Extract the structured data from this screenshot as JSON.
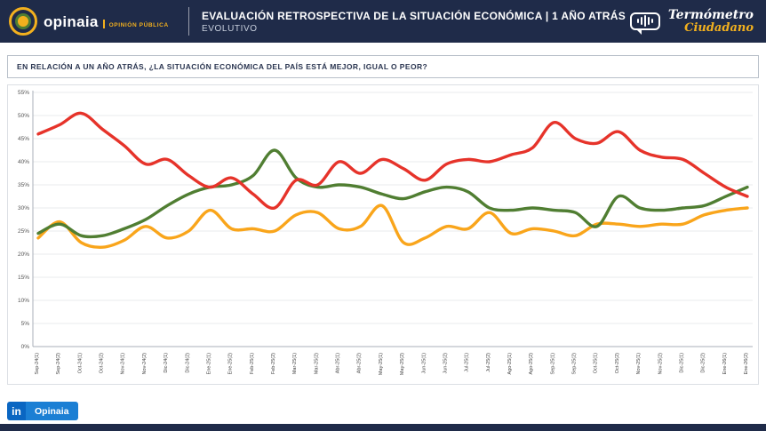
{
  "header": {
    "brand": {
      "name": "opinaia",
      "tagline": "OPINIÓN PÚBLICA"
    },
    "title": "EVALUACIÓN RETROSPECTIVA DE LA SITUACIÓN ECONÓMICA | 1 AÑO ATRÁS",
    "subtitle": "EVOLUTIVO",
    "right_logo": {
      "line1": "Termómetro",
      "line2": "Ciudadano"
    }
  },
  "question": "EN RELACIÓN A UN AÑO ATRÁS, ¿LA SITUACIÓN ECONÓMICA DEL PAÍS ESTÁ MEJOR, IGUAL O PEOR?",
  "chart_data": {
    "type": "line",
    "title": "",
    "xlabel": "",
    "ylabel": "",
    "ylim": [
      0,
      55
    ],
    "yticks": [
      0,
      5,
      10,
      15,
      20,
      25,
      30,
      35,
      40,
      45,
      50,
      55
    ],
    "ytick_format": "percent",
    "grid": true,
    "legend": "none",
    "categories": [
      "Sep-24(1)",
      "Sep-24(2)",
      "Oct-24(1)",
      "Oct-24(2)",
      "Nov-24(1)",
      "Nov-24(2)",
      "Dic-24(1)",
      "Dic-24(2)",
      "Ene-25(1)",
      "Ene-25(2)",
      "Feb-25(1)",
      "Feb-25(2)",
      "Mar-25(1)",
      "Mar-25(2)",
      "Abr-25(1)",
      "Abr-25(2)",
      "May-25(1)",
      "May-25(2)",
      "Jun-25(1)",
      "Jun-25(2)",
      "Jul-25(1)",
      "Jul-25(2)",
      "Ago-25(1)",
      "Ago-25(2)",
      "Sep-25(1)",
      "Sep-25(2)",
      "Oct-25(1)",
      "Oct-25(2)",
      "Nov-25(1)",
      "Nov-25(2)",
      "Dic-25(1)",
      "Dic-25(2)",
      "Ene-26(1)",
      "Ene-26(2)"
    ],
    "series": [
      {
        "name": "orange",
        "color": "#f9a51b",
        "values": [
          23.5,
          27,
          22.5,
          21.5,
          23,
          26,
          23.5,
          25,
          29.5,
          25.5,
          25.5,
          25,
          28.5,
          29,
          25.5,
          26,
          30.5,
          22.5,
          23.5,
          26,
          25.5,
          29,
          24.5,
          25.5,
          25,
          24,
          26.5,
          26.5,
          26,
          26.5,
          26.5,
          28.5,
          29.5,
          30
        ]
      },
      {
        "name": "green",
        "color": "#507e32",
        "values": [
          24.5,
          26.5,
          24,
          24,
          25.5,
          27.5,
          30.5,
          33,
          34.5,
          35,
          37,
          42.5,
          36.5,
          34.5,
          35,
          34.5,
          33,
          32,
          33.5,
          34.5,
          33.5,
          30,
          29.5,
          30,
          29.5,
          29,
          26,
          32.5,
          30,
          29.5,
          30,
          30.5,
          32.5,
          34.5
        ]
      },
      {
        "name": "red",
        "color": "#e6332a",
        "values": [
          46,
          48,
          50.5,
          47,
          43.5,
          39.5,
          40.5,
          37,
          34.5,
          36.5,
          33,
          30,
          36,
          35,
          40,
          37.5,
          40.5,
          38.5,
          36,
          39.5,
          40.5,
          40,
          41.5,
          43,
          48.5,
          45,
          44,
          46.5,
          42.5,
          41,
          40.5,
          37.5,
          34.5,
          32.5
        ]
      }
    ]
  },
  "footer": {
    "linkedin_icon": "in",
    "linkedin_label": "Opinaia"
  },
  "colors": {
    "header_bg": "#1f2b49",
    "accent_yellow": "#f2b01e",
    "red": "#e6332a",
    "green": "#507e32",
    "orange": "#f9a51b",
    "linkedin_blue": "#0a66c2"
  }
}
